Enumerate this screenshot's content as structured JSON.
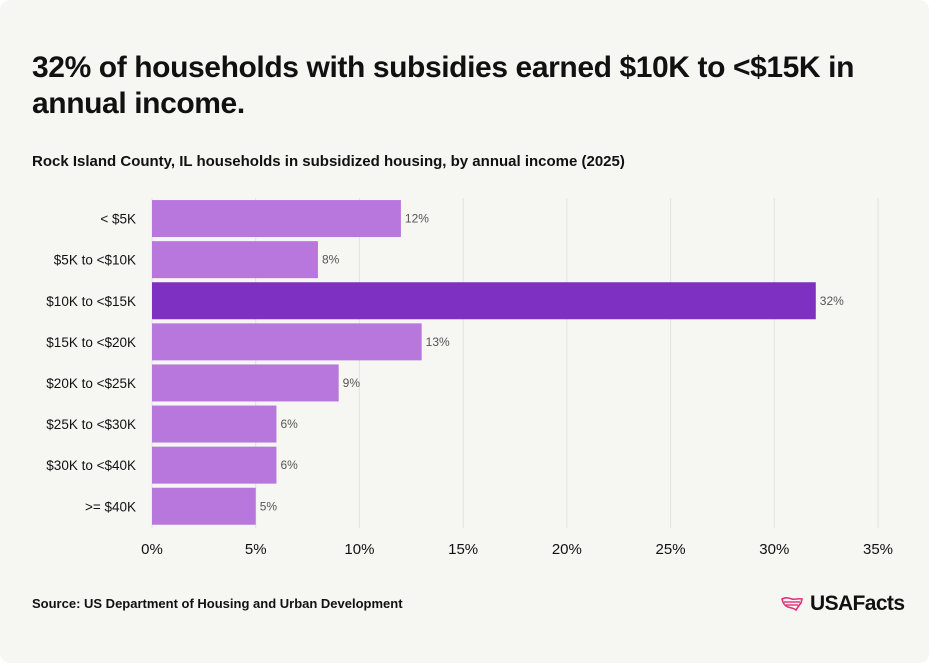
{
  "headline": "32% of households with subsidies earned $10K to <$15K in annual income.",
  "subtitle": "Rock Island County, IL households in subsidized housing, by annual income (2025)",
  "source": "Source: US Department of Housing and Urban Development",
  "logo": {
    "text": "USAFacts",
    "icon": "us-map-stripes-icon"
  },
  "colors": {
    "bar": "#b877dd",
    "bar_highlight": "#7d30c1",
    "logo_accent": "#e0317a"
  },
  "chart_data": {
    "type": "bar",
    "orientation": "horizontal",
    "categories": [
      "< $5K",
      "$5K to <$10K",
      "$10K to <$15K",
      "$15K to <$20K",
      "$20K to <$25K",
      "$25K to <$30K",
      "$30K to <$40K",
      ">= $40K"
    ],
    "values": [
      12,
      8,
      32,
      13,
      9,
      6,
      6,
      5
    ],
    "value_labels": [
      "12%",
      "8%",
      "32%",
      "13%",
      "9%",
      "6%",
      "6%",
      "5%"
    ],
    "highlight_index": 2,
    "xlim": [
      0,
      35
    ],
    "xticks": [
      0,
      5,
      10,
      15,
      20,
      25,
      30,
      35
    ],
    "xtick_labels": [
      "0%",
      "5%",
      "10%",
      "15%",
      "20%",
      "25%",
      "30%",
      "35%"
    ],
    "grid": true
  }
}
